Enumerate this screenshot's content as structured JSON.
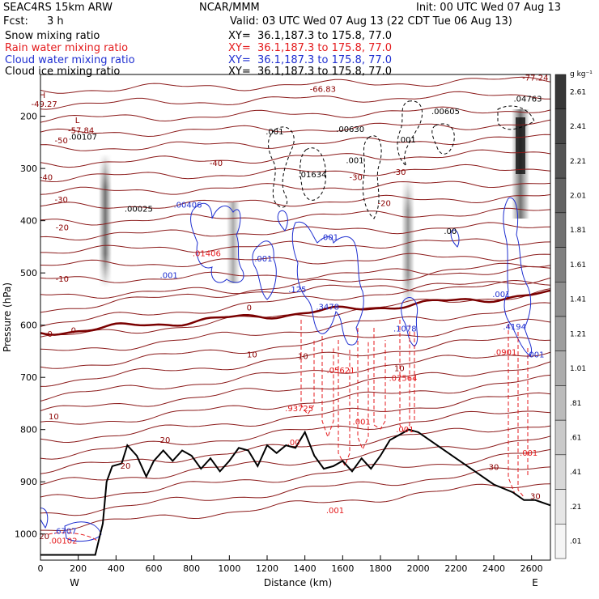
{
  "header": {
    "model": "SEAC4RS 15km ARW",
    "org": "NCAR/MMM",
    "init": "Init: 00 UTC Wed 07 Aug 13",
    "fcst_label": "Fcst:",
    "fcst_value": "3 h",
    "valid": "Valid: 03 UTC Wed 07 Aug 13 (22 CDT Tue 06 Aug 13)"
  },
  "fields": [
    {
      "name": "Snow mixing ratio",
      "xy": "XY=  36.1,187.3 to 175.8, 77.0",
      "color": "#000000"
    },
    {
      "name": "Rain water mixing ratio",
      "xy": "XY=  36.1,187.3 to 175.8, 77.0",
      "color": "#e41a1c"
    },
    {
      "name": "Cloud water mixing ratio",
      "xy": "XY=  36.1,187.3 to 175.8, 77.0",
      "color": "#1f2fd0"
    },
    {
      "name": "Cloud ice mixing ratio",
      "xy": "XY=  36.1,187.3 to 175.8, 77.0",
      "color": "#000000"
    }
  ],
  "colorbar": {
    "unit": "g kg⁻¹",
    "labels": [
      "2.61",
      "2.41",
      "2.21",
      "2.01",
      "1.81",
      "1.61",
      "1.41",
      "1.21",
      "1.01",
      ".81",
      ".61",
      ".41",
      ".21",
      ".01"
    ]
  },
  "chart_data": {
    "type": "cross-section",
    "xlabel": "Distance (km)",
    "ylabel": "Pressure (hPa)",
    "x_ticks": [
      0,
      200,
      400,
      600,
      800,
      1000,
      1200,
      1400,
      1600,
      1800,
      2000,
      2200,
      2400,
      2600
    ],
    "xlim": [
      0,
      2700
    ],
    "y_ticks": [
      200,
      300,
      400,
      500,
      600,
      700,
      800,
      900,
      1000
    ],
    "ylim": [
      1050,
      120
    ],
    "endpoints": {
      "left": "W",
      "right": "E"
    },
    "temperature_contour_labels": [
      {
        "text": "-66.83",
        "x": 1495,
        "p": 153
      },
      {
        "text": "-77.24",
        "x": 2620,
        "p": 132
      },
      {
        "text": "-49.27",
        "x": 20,
        "p": 182
      },
      {
        "text": "-57.84",
        "x": 215,
        "p": 232
      },
      {
        "text": "-50",
        "x": 110,
        "p": 252
      },
      {
        "text": "-40",
        "x": 930,
        "p": 295
      },
      {
        "text": "-40",
        "x": 30,
        "p": 322
      },
      {
        "text": "-30",
        "x": 110,
        "p": 365
      },
      {
        "text": "-30",
        "x": 1670,
        "p": 322
      },
      {
        "text": "-30",
        "x": 1900,
        "p": 312
      },
      {
        "text": "-20",
        "x": 115,
        "p": 418
      },
      {
        "text": "-20",
        "x": 1820,
        "p": 372
      },
      {
        "text": "-10",
        "x": 115,
        "p": 517
      },
      {
        "text": "0",
        "x": 1105,
        "p": 572
      },
      {
        "text": "0",
        "x": 175,
        "p": 615
      },
      {
        "text": "0",
        "x": 50,
        "p": 622
      },
      {
        "text": "10",
        "x": 1120,
        "p": 662
      },
      {
        "text": "10",
        "x": 1390,
        "p": 665
      },
      {
        "text": "10",
        "x": 1900,
        "p": 688
      },
      {
        "text": "10",
        "x": 70,
        "p": 780
      },
      {
        "text": "20",
        "x": 660,
        "p": 825
      },
      {
        "text": "20",
        "x": 450,
        "p": 875
      },
      {
        "text": "20",
        "x": 20,
        "p": 1010
      },
      {
        "text": "30",
        "x": 2400,
        "p": 877
      },
      {
        "text": "30",
        "x": 2620,
        "p": 933
      }
    ],
    "extrema_labels": [
      {
        "text": "H",
        "x": 10,
        "p": 165,
        "color": "#8b0000"
      },
      {
        "text": "L",
        "x": 195,
        "p": 213,
        "color": "#8b0000"
      },
      {
        "text": ".00107",
        "x": 225,
        "p": 245,
        "color": "#000000"
      },
      {
        "text": ".00025",
        "x": 520,
        "p": 383,
        "color": "#000000"
      },
      {
        "text": ".001",
        "x": 1240,
        "p": 235,
        "color": "#000000"
      },
      {
        "text": ".00630",
        "x": 1640,
        "p": 230,
        "color": "#000000"
      },
      {
        "text": ".01634",
        "x": 1440,
        "p": 317,
        "color": "#000000"
      },
      {
        "text": ".001",
        "x": 1665,
        "p": 290,
        "color": "#000000"
      },
      {
        "text": ".001",
        "x": 1940,
        "p": 250,
        "color": "#000000"
      },
      {
        "text": ".00605",
        "x": 2145,
        "p": 196,
        "color": "#000000"
      },
      {
        "text": ".04763",
        "x": 2580,
        "p": 172,
        "color": "#000000"
      },
      {
        "text": ".00",
        "x": 2170,
        "p": 425,
        "color": "#000000"
      },
      {
        "text": ".00406",
        "x": 780,
        "p": 375,
        "color": "#1f2fd0"
      },
      {
        "text": ".001",
        "x": 1530,
        "p": 437,
        "color": "#1f2fd0"
      },
      {
        "text": ".001",
        "x": 1180,
        "p": 478,
        "color": "#1f2fd0"
      },
      {
        "text": ".001",
        "x": 680,
        "p": 510,
        "color": "#1f2fd0"
      },
      {
        "text": ".125",
        "x": 1360,
        "p": 537,
        "color": "#1f2fd0"
      },
      {
        "text": ".3478",
        "x": 1520,
        "p": 570,
        "color": "#1f2fd0"
      },
      {
        "text": ".1078",
        "x": 1930,
        "p": 612,
        "color": "#1f2fd0"
      },
      {
        "text": ".4194",
        "x": 2510,
        "p": 608,
        "color": "#1f2fd0"
      },
      {
        "text": ".001",
        "x": 2440,
        "p": 546,
        "color": "#1f2fd0"
      },
      {
        "text": ".001",
        "x": 2620,
        "p": 662,
        "color": "#1f2fd0"
      },
      {
        "text": ".6707",
        "x": 130,
        "p": 1000,
        "color": "#1f2fd0"
      },
      {
        "text": ".01406",
        "x": 880,
        "p": 468,
        "color": "#e41a1c"
      },
      {
        "text": ".05621",
        "x": 1590,
        "p": 692,
        "color": "#e41a1c"
      },
      {
        "text": ".07564",
        "x": 1920,
        "p": 707,
        "color": "#e41a1c"
      },
      {
        "text": ".93725",
        "x": 1370,
        "p": 765,
        "color": "#e41a1c"
      },
      {
        "text": ".0901",
        "x": 2460,
        "p": 657,
        "color": "#e41a1c"
      },
      {
        "text": ".001",
        "x": 1700,
        "p": 790,
        "color": "#e41a1c"
      },
      {
        "text": ".001",
        "x": 1930,
        "p": 805,
        "color": "#e41a1c"
      },
      {
        "text": ".00",
        "x": 1340,
        "p": 830,
        "color": "#e41a1c"
      },
      {
        "text": ".001",
        "x": 2585,
        "p": 850,
        "color": "#e41a1c"
      },
      {
        "text": ".001",
        "x": 1560,
        "p": 960,
        "color": "#e41a1c"
      },
      {
        "text": ".00102",
        "x": 120,
        "p": 1018,
        "color": "#e41a1c"
      }
    ],
    "terrain_profile": [
      [
        0,
        1040
      ],
      [
        290,
        1040
      ],
      [
        330,
        980
      ],
      [
        350,
        900
      ],
      [
        380,
        870
      ],
      [
        430,
        865
      ],
      [
        460,
        830
      ],
      [
        510,
        850
      ],
      [
        560,
        890
      ],
      [
        600,
        860
      ],
      [
        650,
        840
      ],
      [
        700,
        860
      ],
      [
        750,
        840
      ],
      [
        800,
        850
      ],
      [
        850,
        875
      ],
      [
        900,
        855
      ],
      [
        950,
        880
      ],
      [
        1000,
        860
      ],
      [
        1050,
        835
      ],
      [
        1100,
        840
      ],
      [
        1150,
        870
      ],
      [
        1200,
        830
      ],
      [
        1250,
        845
      ],
      [
        1300,
        830
      ],
      [
        1350,
        835
      ],
      [
        1400,
        805
      ],
      [
        1450,
        850
      ],
      [
        1500,
        875
      ],
      [
        1550,
        870
      ],
      [
        1600,
        860
      ],
      [
        1650,
        880
      ],
      [
        1700,
        855
      ],
      [
        1750,
        875
      ],
      [
        1800,
        850
      ],
      [
        1850,
        820
      ],
      [
        1900,
        810
      ],
      [
        1950,
        800
      ],
      [
        2000,
        805
      ],
      [
        2100,
        830
      ],
      [
        2200,
        855
      ],
      [
        2300,
        880
      ],
      [
        2400,
        905
      ],
      [
        2500,
        920
      ],
      [
        2560,
        935
      ],
      [
        2620,
        935
      ],
      [
        2700,
        945
      ]
    ]
  }
}
